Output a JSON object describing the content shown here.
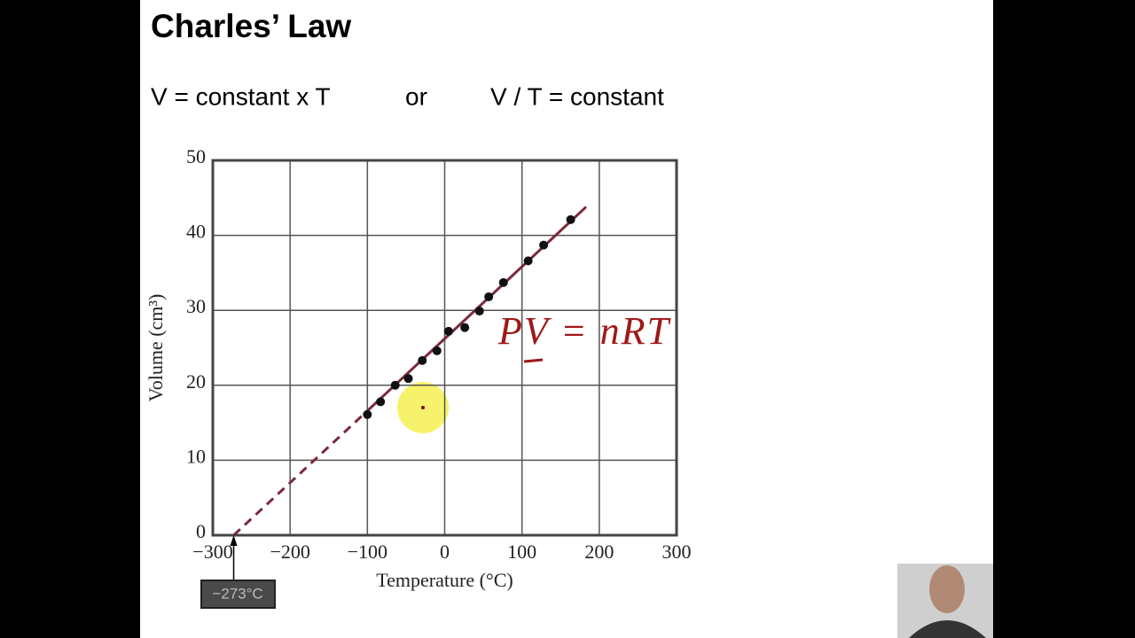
{
  "slide": {
    "title": "Charles’ Law",
    "equation_left": "V = constant x T",
    "conjunction": "or",
    "equation_right": "V / T = constant"
  },
  "chart_data": {
    "type": "scatter",
    "xlabel": "Temperature (°C)",
    "ylabel": "Volume (cm³)",
    "xlim": [
      -300,
      300
    ],
    "ylim": [
      0,
      50
    ],
    "xticks": [
      {
        "value": -300,
        "label": "−300"
      },
      {
        "value": -200,
        "label": "−200"
      },
      {
        "value": -100,
        "label": "−100"
      },
      0,
      100,
      200,
      300
    ],
    "yticks": [
      0,
      10,
      20,
      30,
      40,
      50
    ],
    "grid": true,
    "points": {
      "color": "#111111",
      "x": [
        -100,
        -83,
        -64,
        -47,
        -29,
        -10,
        5,
        26,
        45,
        57,
        76,
        108,
        128,
        163
      ],
      "y": [
        16.1,
        17.8,
        20.0,
        20.9,
        23.3,
        24.6,
        27.2,
        27.7,
        29.9,
        31.8,
        33.7,
        36.6,
        38.7,
        42.1
      ]
    },
    "lines": [
      {
        "color": "#7a2a3a",
        "dashed": true,
        "x": [
          -273,
          -100
        ],
        "y": [
          0,
          16.6
        ]
      },
      {
        "color": "#7a2a3a",
        "dashed": false,
        "x": [
          -100,
          183
        ],
        "y": [
          16.6,
          43.8
        ]
      }
    ],
    "annotations": [
      {
        "text": "−273°C",
        "x": -273,
        "y": 0
      },
      {
        "text": "PV = nRT",
        "color": "#a01818"
      }
    ]
  }
}
